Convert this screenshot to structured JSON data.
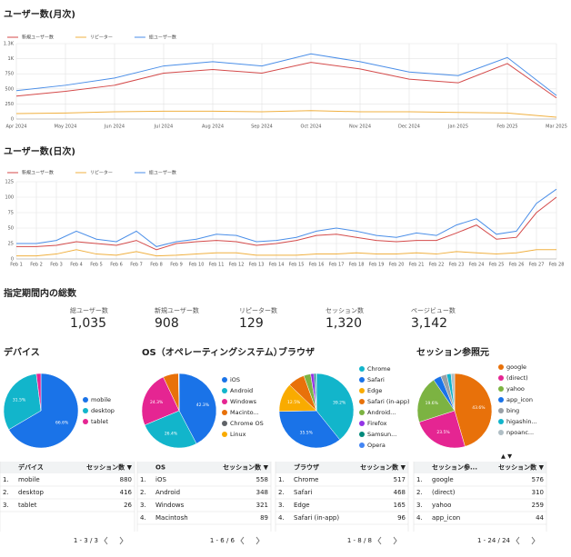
{
  "chart_data": [
    {
      "type": "line",
      "title": "ユーザー数(月次)",
      "categories": [
        "Apr 2024",
        "May 2024",
        "Jun 2024",
        "Jul 2024",
        "Aug 2024",
        "Sep 2024",
        "Oct 2024",
        "Nov 2024",
        "Dec 2024",
        "Jan 2025",
        "Feb 2025",
        "Mar 2025"
      ],
      "series": [
        {
          "name": "新規ユーザー数",
          "color": "#d44a4a",
          "values": [
            380,
            460,
            560,
            760,
            820,
            760,
            940,
            830,
            660,
            600,
            920,
            350
          ]
        },
        {
          "name": "リピーター",
          "color": "#f0b040",
          "values": [
            90,
            100,
            120,
            130,
            130,
            120,
            140,
            120,
            120,
            110,
            100,
            30
          ]
        },
        {
          "name": "総ユーザー数",
          "color": "#4a8ee8",
          "values": [
            470,
            560,
            680,
            880,
            950,
            880,
            1080,
            950,
            780,
            720,
            1020,
            390
          ]
        }
      ],
      "ylim": [
        0,
        1250
      ],
      "yticks": [
        0,
        250,
        500,
        750,
        {
          "value": 1000,
          "label": "1K"
        },
        {
          "value": 1250,
          "label": "1.3K"
        }
      ],
      "grid": true
    },
    {
      "type": "line",
      "title": "ユーザー数(日次)",
      "categories": [
        "Feb 1",
        "Feb 2",
        "Feb 3",
        "Feb 4",
        "Feb 5",
        "Feb 6",
        "Feb 7",
        "Feb 8",
        "Feb 9",
        "Feb 10",
        "Feb 11",
        "Feb 12",
        "Feb 13",
        "Feb 14",
        "Feb 15",
        "Feb 16",
        "Feb 17",
        "Feb 18",
        "Feb 19",
        "Feb 20",
        "Feb 21",
        "Feb 22",
        "Feb 23",
        "Feb 24",
        "Feb 25",
        "Feb 26",
        "Feb 27",
        "Feb 28"
      ],
      "series": [
        {
          "name": "新規ユーザー数",
          "color": "#d44a4a",
          "values": [
            20,
            20,
            22,
            28,
            25,
            22,
            30,
            15,
            25,
            28,
            30,
            28,
            22,
            25,
            30,
            38,
            40,
            35,
            30,
            28,
            30,
            30,
            42,
            55,
            32,
            35,
            75,
            100
          ]
        },
        {
          "name": "リピーター",
          "color": "#f0b040",
          "values": [
            5,
            5,
            8,
            15,
            8,
            6,
            12,
            5,
            6,
            8,
            10,
            10,
            6,
            6,
            6,
            8,
            8,
            10,
            8,
            8,
            10,
            8,
            12,
            10,
            8,
            10,
            15,
            15
          ]
        },
        {
          "name": "総ユーザー数",
          "color": "#4a8ee8",
          "values": [
            25,
            25,
            30,
            45,
            32,
            28,
            45,
            20,
            28,
            32,
            40,
            38,
            28,
            30,
            35,
            45,
            50,
            45,
            38,
            35,
            42,
            38,
            55,
            65,
            40,
            45,
            90,
            113
          ]
        }
      ],
      "ylim": [
        0,
        125
      ],
      "yticks": [
        0,
        25,
        50,
        75,
        100,
        125
      ],
      "grid": true
    },
    {
      "type": "pie",
      "title": "デバイス",
      "categories": [
        "mobile",
        "desktop",
        "tablet"
      ],
      "values": [
        66.6,
        31.5,
        2.0
      ],
      "value_labels": [
        "66.6%",
        "31.5%",
        null
      ],
      "colors": [
        "#1a73e8",
        "#12b5cb",
        "#e52592"
      ]
    },
    {
      "type": "pie",
      "title": "OS（オペレーティングシステム）",
      "categories": [
        "iOS",
        "Android",
        "Windows",
        "Macinto...",
        "Chrome OS",
        "Linux"
      ],
      "values": [
        42.3,
        26.4,
        24.3,
        6.7,
        0.2,
        0.1
      ],
      "value_labels": [
        "42.3%",
        "26.4%",
        "24.3%",
        null,
        null,
        null
      ],
      "colors": [
        "#1a73e8",
        "#12b5cb",
        "#e52592",
        "#e8710a",
        "#5f6368",
        "#f9ab00"
      ]
    },
    {
      "type": "pie",
      "title": "ブラウザ",
      "categories": [
        "Chrome",
        "Safari",
        "Edge",
        "Safari (in-app)",
        "Android...",
        "Firefox",
        "Samsun...",
        "Opera"
      ],
      "values": [
        39.2,
        35.5,
        12.5,
        7.3,
        3.0,
        1.5,
        0.8,
        0.2
      ],
      "value_labels": [
        "39.2%",
        "35.5%",
        "12.5%",
        null,
        null,
        null,
        null,
        null
      ],
      "colors": [
        "#12b5cb",
        "#1a73e8",
        "#f9ab00",
        "#e8710a",
        "#7cb342",
        "#9334e6",
        "#00897b",
        "#4285f4"
      ]
    },
    {
      "type": "pie",
      "title": "セッション参照元",
      "categories": [
        "google",
        "(direct)",
        "yahoo",
        "app_icon",
        "bing",
        "higashin...",
        "npoanc..."
      ],
      "values": [
        43.6,
        23.5,
        19.6,
        3.3,
        2.5,
        1.8,
        1.5
      ],
      "value_labels": [
        "43.6%",
        "23.5%",
        "19.6%",
        null,
        null,
        null,
        null
      ],
      "colors": [
        "#e8710a",
        "#e52592",
        "#7cb342",
        "#1a73e8",
        "#9aa0a6",
        "#12b5cb",
        "#b0bec5"
      ],
      "legend_pager": "▲ ▼"
    }
  ],
  "summary": {
    "title": "指定期間内の総数",
    "items": [
      {
        "label": "総ユーザー数",
        "value": "1,035"
      },
      {
        "label": "新規ユーザー数",
        "value": "908"
      },
      {
        "label": "リピーター数",
        "value": "129"
      },
      {
        "label": "セッション数",
        "value": "1,320"
      },
      {
        "label": "ページビュー数",
        "value": "3,142"
      }
    ]
  },
  "tables": [
    {
      "headers": [
        "デバイス",
        "セッション数 ▼"
      ],
      "rows": [
        [
          "1.",
          "mobile",
          880
        ],
        [
          "2.",
          "desktop",
          416
        ],
        [
          "3.",
          "tablet",
          26
        ]
      ],
      "pager": "1 - 3 / 3"
    },
    {
      "headers": [
        "OS",
        "セッション数 ▼"
      ],
      "rows": [
        [
          "1.",
          "iOS",
          558
        ],
        [
          "2.",
          "Android",
          348
        ],
        [
          "3.",
          "Windows",
          321
        ],
        [
          "4.",
          "Macintosh",
          89
        ]
      ],
      "pager": "1 - 6 / 6"
    },
    {
      "headers": [
        "ブラウザ",
        "セッション数 ▼"
      ],
      "rows": [
        [
          "1.",
          "Chrome",
          517
        ],
        [
          "2.",
          "Safari",
          468
        ],
        [
          "3.",
          "Edge",
          165
        ],
        [
          "4.",
          "Safari (in-app)",
          96
        ]
      ],
      "pager": "1 - 8 / 8"
    },
    {
      "headers": [
        "セッション参...",
        "セッション数 ▼"
      ],
      "rows": [
        [
          "1.",
          "google",
          576
        ],
        [
          "2.",
          "(direct)",
          310
        ],
        [
          "3.",
          "yahoo",
          259
        ],
        [
          "4.",
          "app_icon",
          44
        ]
      ],
      "pager": "1 - 24 / 24"
    }
  ]
}
